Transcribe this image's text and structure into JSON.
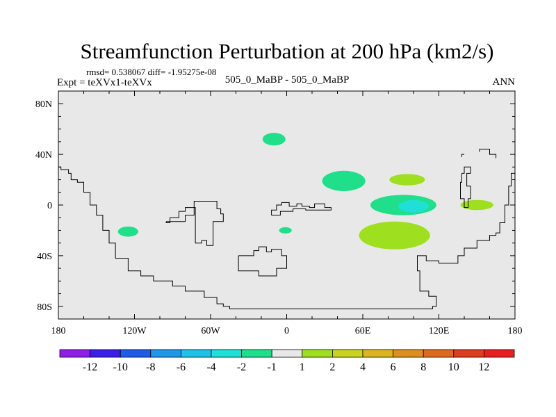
{
  "chart_data": {
    "type": "heatmap",
    "title": "Streamfunction Perturbation at 200 hPa (km2/s)",
    "stats_line": "rmsd= 0.538067 diff= -1.95275e-08",
    "left_label": "Expt = teXVx1-teXVx",
    "center_label": "505_0_MaBP - 505_0_MaBP",
    "right_label": "ANN",
    "x_axis": {
      "range": [
        -180,
        180
      ],
      "ticks": [
        {
          "value": -180,
          "label": "180"
        },
        {
          "value": -120,
          "label": "120W"
        },
        {
          "value": -60,
          "label": "60W"
        },
        {
          "value": 0,
          "label": "0"
        },
        {
          "value": 60,
          "label": "60E"
        },
        {
          "value": 120,
          "label": "120E"
        },
        {
          "value": 180,
          "label": "180"
        }
      ],
      "minor_step": 20
    },
    "y_axis": {
      "range": [
        -90,
        90
      ],
      "ticks": [
        {
          "value": 80,
          "label": "80N"
        },
        {
          "value": 40,
          "label": "40N"
        },
        {
          "value": 0,
          "label": "0"
        },
        {
          "value": -40,
          "label": "40S"
        },
        {
          "value": -80,
          "label": "80S"
        }
      ],
      "minor_step": 10
    },
    "colorbar": {
      "colors": [
        "#8f1fe6",
        "#3a1fe6",
        "#1f5be6",
        "#1f96e6",
        "#1fc2e6",
        "#1fdfd6",
        "#1fdf8a",
        "#e8e8e8",
        "#9ee01f",
        "#c8d41f",
        "#dcb41f",
        "#dc8f1f",
        "#dc6a1f",
        "#dc3f1f",
        "#e81f1f"
      ],
      "labels": [
        "-12",
        "-10",
        "-8",
        "-6",
        "-4",
        "-2",
        "-1",
        "1",
        "2",
        "4",
        "6",
        "8",
        "10",
        "12"
      ]
    },
    "background_color": "#e8e8e8",
    "anomalies": [
      {
        "lon": -10,
        "lat": 52,
        "rlon": 9,
        "rlat": 5,
        "level": "-1",
        "color": "#1fdf8a"
      },
      {
        "lon": 45,
        "lat": 19,
        "rlon": 17,
        "rlat": 8,
        "level": "-1",
        "color": "#1fdf8a"
      },
      {
        "lon": 95,
        "lat": 20,
        "rlon": 14,
        "rlat": 4.5,
        "level": "1 to 2",
        "color": "#9ee01f"
      },
      {
        "lon": 92,
        "lat": 0,
        "rlon": 26,
        "rlat": 8,
        "level": "-1",
        "color": "#1fdf8a"
      },
      {
        "lon": 100,
        "lat": -1,
        "rlon": 12,
        "rlat": 5,
        "level": "-2",
        "color": "#1fdfd6"
      },
      {
        "lon": 150,
        "lat": 0,
        "rlon": 13,
        "rlat": 4,
        "level": "1 to 2",
        "color": "#9ee01f"
      },
      {
        "lon": 85,
        "lat": -24,
        "rlon": 28,
        "rlat": 11,
        "level": "1 to 2",
        "color": "#9ee01f"
      },
      {
        "lon": -125,
        "lat": -21,
        "rlon": 8,
        "rlat": 4,
        "level": "-1",
        "color": "#1fdf8a"
      },
      {
        "lon": -1,
        "lat": -20,
        "rlon": 5,
        "rlat": 2.5,
        "level": "-1",
        "color": "#1fdf8a"
      }
    ],
    "coastlines": [
      [
        [
          -180,
          30
        ],
        [
          -178,
          30
        ],
        [
          -178,
          28
        ],
        [
          -172,
          28
        ],
        [
          -172,
          25
        ],
        [
          -170,
          25
        ],
        [
          -170,
          20
        ],
        [
          -165,
          20
        ],
        [
          -165,
          18
        ],
        [
          -160,
          18
        ],
        [
          -160,
          10
        ],
        [
          -155,
          10
        ],
        [
          -155,
          0
        ],
        [
          -150,
          0
        ],
        [
          -150,
          -8
        ],
        [
          -145,
          -8
        ],
        [
          -145,
          -20
        ],
        [
          -140,
          -20
        ],
        [
          -140,
          -30
        ],
        [
          -135,
          -30
        ],
        [
          -135,
          -42
        ],
        [
          -125,
          -42
        ],
        [
          -125,
          -52
        ],
        [
          -115,
          -52
        ],
        [
          -115,
          -56
        ],
        [
          -105,
          -56
        ],
        [
          -105,
          -60
        ],
        [
          -90,
          -60
        ],
        [
          -90,
          -64
        ],
        [
          -80,
          -64
        ],
        [
          -80,
          -68
        ],
        [
          -65,
          -68
        ],
        [
          -65,
          -73
        ],
        [
          -55,
          -73
        ],
        [
          -55,
          -78
        ],
        [
          -50,
          -78
        ],
        [
          -50,
          -80
        ],
        [
          -45,
          -80
        ],
        [
          -45,
          -82
        ],
        [
          115,
          -82
        ],
        [
          115,
          -80
        ],
        [
          118,
          -80
        ],
        [
          118,
          -72
        ],
        [
          112,
          -72
        ],
        [
          112,
          -68
        ],
        [
          105,
          -68
        ],
        [
          105,
          -52
        ],
        [
          103,
          -52
        ],
        [
          103,
          -40
        ],
        [
          110,
          -40
        ],
        [
          110,
          -44
        ],
        [
          120,
          -44
        ],
        [
          120,
          -46
        ],
        [
          135,
          -46
        ],
        [
          135,
          -40
        ],
        [
          140,
          -40
        ],
        [
          140,
          -34
        ],
        [
          150,
          -34
        ],
        [
          150,
          -28
        ],
        [
          160,
          -28
        ],
        [
          160,
          -24
        ],
        [
          165,
          -24
        ],
        [
          165,
          -22
        ],
        [
          168,
          -22
        ],
        [
          168,
          -14
        ],
        [
          172,
          -14
        ],
        [
          172,
          0
        ],
        [
          175,
          0
        ],
        [
          175,
          15
        ],
        [
          177,
          15
        ],
        [
          177,
          25
        ],
        [
          180,
          25
        ]
      ],
      [
        [
          -95,
          -13
        ],
        [
          -95,
          -14
        ],
        [
          -92,
          -14
        ],
        [
          -92,
          -10
        ],
        [
          -85,
          -10
        ],
        [
          -85,
          -5
        ],
        [
          -80,
          -5
        ],
        [
          -80,
          -2
        ],
        [
          -72,
          -2
        ],
        [
          -72,
          -30
        ],
        [
          -67,
          -30
        ],
        [
          -67,
          -28
        ],
        [
          -63,
          -28
        ],
        [
          -63,
          -32
        ],
        [
          -58,
          -32
        ],
        [
          -58,
          -13
        ],
        [
          -50,
          -13
        ],
        [
          -50,
          -7
        ],
        [
          -52,
          -7
        ],
        [
          -52,
          -3
        ],
        [
          -55,
          -3
        ],
        [
          -55,
          3
        ],
        [
          -73,
          3
        ],
        [
          -73,
          -8
        ],
        [
          -80,
          -8
        ],
        [
          -80,
          -13
        ],
        [
          -95,
          -13
        ]
      ],
      [
        [
          -12,
          -8
        ],
        [
          -12,
          -4
        ],
        [
          -8,
          -4
        ],
        [
          -8,
          0
        ],
        [
          -4,
          0
        ],
        [
          -4,
          2
        ],
        [
          2,
          2
        ],
        [
          2,
          -1
        ],
        [
          8,
          -1
        ],
        [
          8,
          1
        ],
        [
          12,
          1
        ],
        [
          12,
          -1
        ],
        [
          18,
          -1
        ],
        [
          18,
          -2
        ],
        [
          22,
          -2
        ],
        [
          22,
          1
        ],
        [
          30,
          1
        ],
        [
          30,
          -2
        ],
        [
          35,
          -2
        ],
        [
          35,
          -4
        ],
        [
          15,
          -4
        ],
        [
          15,
          -3
        ],
        [
          5,
          -3
        ],
        [
          5,
          -5
        ],
        [
          -5,
          -5
        ],
        [
          -5,
          -8
        ],
        [
          -12,
          -8
        ]
      ],
      [
        [
          -38,
          -40
        ],
        [
          -38,
          -52
        ],
        [
          -22,
          -52
        ],
        [
          -22,
          -56
        ],
        [
          -8,
          -56
        ],
        [
          -8,
          -50
        ],
        [
          0,
          -50
        ],
        [
          0,
          -40
        ],
        [
          -4,
          -40
        ],
        [
          -4,
          -35
        ],
        [
          -12,
          -35
        ],
        [
          -12,
          -37
        ],
        [
          -16,
          -37
        ],
        [
          -16,
          -33
        ],
        [
          -22,
          -33
        ],
        [
          -22,
          -36
        ],
        [
          -26,
          -36
        ],
        [
          -26,
          -40
        ],
        [
          -38,
          -40
        ]
      ],
      [
        [
          138,
          38
        ],
        [
          138,
          40
        ],
        [
          140,
          40
        ]
      ],
      [
        [
          152,
          42
        ],
        [
          152,
          44
        ],
        [
          160,
          44
        ],
        [
          160,
          40
        ],
        [
          165,
          40
        ],
        [
          165,
          37
        ]
      ],
      [
        [
          138,
          25
        ],
        [
          138,
          18
        ],
        [
          137,
          18
        ],
        [
          137,
          5
        ],
        [
          140,
          5
        ],
        [
          140,
          -2
        ],
        [
          143,
          -2
        ],
        [
          143,
          5
        ],
        [
          145,
          5
        ],
        [
          145,
          15
        ],
        [
          142,
          15
        ],
        [
          142,
          25
        ],
        [
          145,
          25
        ],
        [
          145,
          30
        ],
        [
          140,
          30
        ],
        [
          140,
          25
        ],
        [
          138,
          25
        ]
      ]
    ]
  }
}
